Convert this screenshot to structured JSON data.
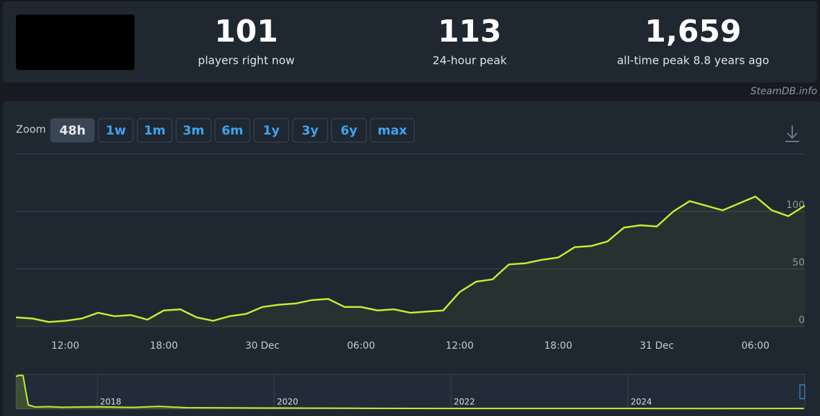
{
  "header": {
    "stats": [
      {
        "value": "101",
        "label": "players right now"
      },
      {
        "value": "113",
        "label": "24-hour peak"
      },
      {
        "value": "1,659",
        "label": "all-time peak 8.8 years ago"
      }
    ],
    "credit": "SteamDB.info"
  },
  "zoom": {
    "label": "Zoom",
    "options": [
      "48h",
      "1w",
      "1m",
      "3m",
      "6m",
      "1y",
      "3y",
      "6y",
      "max"
    ],
    "active": "48h"
  },
  "chart_data": [
    {
      "type": "line",
      "color": "#c3f02f",
      "grid": true,
      "categories": [
        null,
        null,
        null,
        "12:00",
        null,
        null,
        null,
        null,
        null,
        "18:00",
        null,
        null,
        null,
        null,
        null,
        "30 Dec",
        null,
        null,
        null,
        null,
        null,
        "06:00",
        null,
        null,
        null,
        null,
        null,
        "12:00",
        null,
        null,
        null,
        null,
        null,
        "18:00",
        null,
        null,
        null,
        null,
        null,
        "31 Dec",
        null,
        null,
        null,
        null,
        null,
        "06:00",
        null,
        null,
        null
      ],
      "values": [
        8,
        7,
        4,
        5,
        7,
        12,
        9,
        10,
        6,
        14,
        15,
        8,
        5,
        9,
        11,
        17,
        19,
        20,
        23,
        24,
        17,
        17,
        14,
        15,
        12,
        13,
        14,
        30,
        39,
        41,
        54,
        55,
        58,
        60,
        69,
        70,
        74,
        86,
        88,
        87,
        100,
        109,
        105,
        101,
        107,
        113,
        101,
        96,
        105
      ],
      "ylim": [
        0,
        150
      ],
      "yticks": [
        0,
        50,
        100
      ]
    },
    {
      "type": "line",
      "color": "#c3f02f",
      "x": [
        2017.08,
        2017.12,
        2017.16,
        2017.19,
        2017.22,
        2017.3,
        2017.45,
        2017.6,
        2017.8,
        2018.0,
        2018.4,
        2018.7,
        2019.0,
        2019.5,
        2020.0,
        2021.0,
        2022.0,
        2023.0,
        2024.0,
        2025.0,
        2025.99
      ],
      "values": [
        1600,
        1659,
        1650,
        900,
        200,
        100,
        120,
        90,
        100,
        110,
        80,
        130,
        70,
        60,
        50,
        40,
        30,
        30,
        30,
        25,
        30
      ],
      "xlim": [
        2017.08,
        2026
      ],
      "xticks": [
        2018,
        2020,
        2022,
        2024
      ],
      "ylim": [
        0,
        1700
      ]
    }
  ]
}
